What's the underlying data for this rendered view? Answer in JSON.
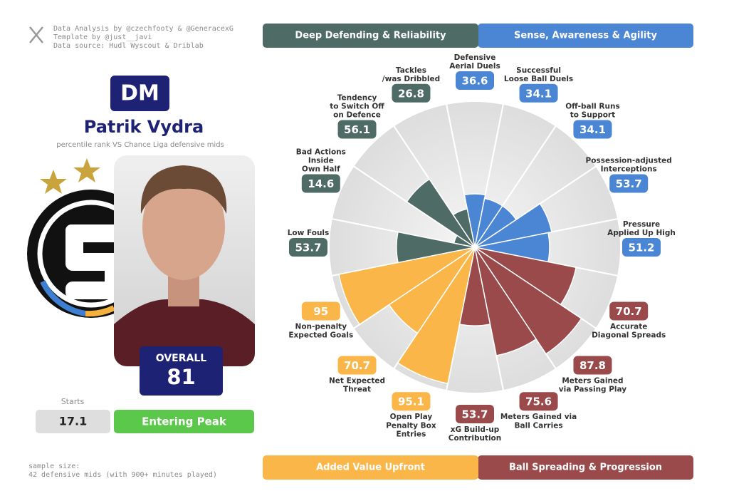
{
  "credits": [
    "Data Analysis by @czechfooty & @GeneracexG",
    "Template by @just__javi",
    "Data source: Hudl Wyscout & Driblab"
  ],
  "player": {
    "position": "DM",
    "name": "Patrik Vydra",
    "subtitle": "percentile rank VS Chance Liga defensive mids",
    "overall_label": "OVERALL",
    "overall": 81,
    "starts_label": "Starts",
    "starts": 17.1,
    "status": "Entering Peak"
  },
  "sample_size": [
    "sample size:",
    "42 defensive mids (with 900+ minutes played)"
  ],
  "chart_data": {
    "type": "pizza",
    "ylim": [
      0,
      100
    ],
    "series": [
      {
        "name": "Sense, Awareness & Agility",
        "color": "#4a86d4",
        "categories": [
          "Defensive\nAerial Duels",
          "Successful\nLoose Ball Duels",
          "Off-ball Runs\nto Support",
          "Possession-adjusted\nInterceptions",
          "Pressure\nApplied Up High"
        ],
        "values": [
          36.6,
          34.1,
          34.1,
          53.7,
          51.2
        ]
      },
      {
        "name": "Ball Spreading & Progression",
        "color": "#9b4a4b",
        "categories": [
          "Accurate\nDiagonal Spreads",
          "Meters Gained\nvia Passing Play",
          "Meters Gained via\nBall Carries",
          "xG Build-up\nContribution"
        ],
        "values": [
          70.7,
          87.8,
          75.6,
          53.7
        ]
      },
      {
        "name": "Added Value Upfront",
        "color": "#fbb64a",
        "categories": [
          "Open Play\nPenalty Box\nEntries",
          "Net Expected\nThreat",
          "Non-penalty\nExpected Goals"
        ],
        "values": [
          95.1,
          70.7,
          95
        ]
      },
      {
        "name": "Deep Defending & Reliability",
        "color": "#4f6b66",
        "categories": [
          "Low Fouls",
          "Bad Actions\nInside\nOwn Half",
          "Tendency\nto Switch Off\non Defence",
          "Tackles\n/was Dribbled"
        ],
        "values": [
          53.7,
          14.6,
          56.1,
          26.8
        ]
      }
    ]
  }
}
